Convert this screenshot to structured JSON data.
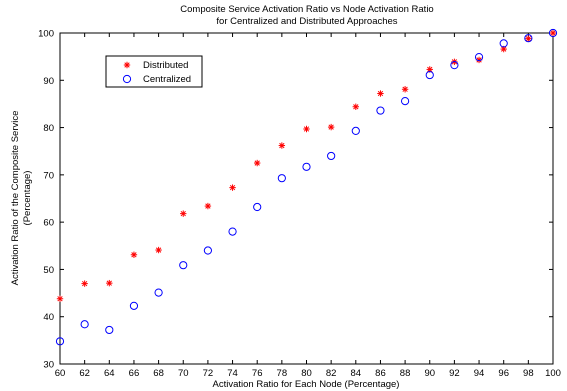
{
  "chart_data": {
    "type": "scatter",
    "title": [
      "Composite Service Activation Ratio vs Node Activation Ratio",
      "for Centralized and Distributed Approaches"
    ],
    "xlabel": "Activation Ratio for Each Node (Percentage)",
    "ylabel": [
      "Activation Ratio of the Composite Service",
      "(Percentage)"
    ],
    "xlim": [
      60,
      100
    ],
    "ylim": [
      30,
      100
    ],
    "xticks": [
      60,
      62,
      64,
      66,
      68,
      70,
      72,
      74,
      76,
      78,
      80,
      82,
      84,
      86,
      88,
      90,
      92,
      94,
      96,
      98,
      100
    ],
    "yticks": [
      30,
      40,
      50,
      60,
      70,
      80,
      90,
      100
    ],
    "grid": false,
    "legend_position": "top-left",
    "series": [
      {
        "name": "Distributed",
        "marker": "asterisk",
        "color": "#ff0000",
        "x": [
          60,
          62,
          64,
          66,
          68,
          70,
          72,
          74,
          76,
          78,
          80,
          82,
          84,
          86,
          88,
          90,
          92,
          94,
          96,
          98,
          100
        ],
        "y": [
          43.8,
          47.0,
          47.1,
          53.1,
          54.1,
          61.8,
          63.4,
          67.3,
          72.5,
          76.2,
          79.7,
          80.1,
          84.4,
          87.2,
          88.1,
          92.3,
          93.9,
          94.3,
          96.6,
          98.8,
          100
        ]
      },
      {
        "name": "Centralized",
        "marker": "circle",
        "color": "#0000ff",
        "x": [
          60,
          62,
          64,
          66,
          68,
          70,
          72,
          74,
          76,
          78,
          80,
          82,
          84,
          86,
          88,
          90,
          92,
          94,
          96,
          98,
          100
        ],
        "y": [
          34.8,
          38.4,
          37.2,
          42.3,
          45.1,
          50.9,
          54.0,
          58.0,
          63.2,
          69.3,
          71.7,
          74.0,
          79.3,
          83.6,
          85.6,
          91.1,
          93.2,
          94.9,
          97.8,
          98.9,
          100
        ]
      }
    ]
  }
}
